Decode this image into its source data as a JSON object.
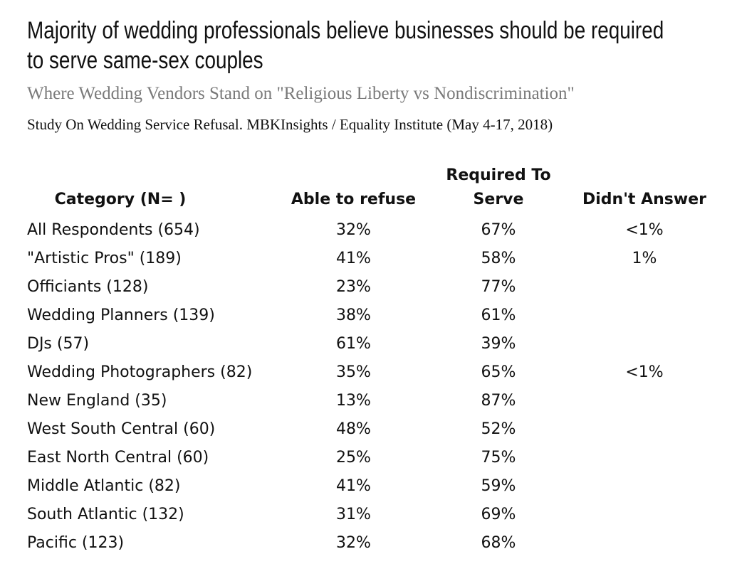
{
  "chart_data": {
    "type": "table",
    "title_lines": [
      "Majority of wedding professionals believe businesses should be required",
      "to serve same-sex couples"
    ],
    "subtitle": "Where Wedding Vendors Stand on \"Religious Liberty vs Nondiscrimination\"",
    "source": "Study On Wedding Service Refusal. MBKInsights / Equality Institute (May 4-17, 2018)",
    "headers": {
      "category": "Category (N= )",
      "refuse": "Able to refuse",
      "required_line1": "Required To",
      "required_line2": "Serve",
      "no_answer": "Didn't Answer"
    },
    "rows": [
      {
        "category": "All Respondents (654)",
        "refuse": "32%",
        "required": "67%",
        "no_answer": "<1%"
      },
      {
        "category": "\"Artistic Pros\" (189)",
        "refuse": "41%",
        "required": "58%",
        "no_answer": "1%"
      },
      {
        "category": "Officiants (128)",
        "refuse": "23%",
        "required": "77%",
        "no_answer": ""
      },
      {
        "category": "Wedding Planners (139)",
        "refuse": "38%",
        "required": "61%",
        "no_answer": ""
      },
      {
        "category": "DJs (57)",
        "refuse": "61%",
        "required": "39%",
        "no_answer": ""
      },
      {
        "category": "Wedding Photographers (82)",
        "refuse": "35%",
        "required": "65%",
        "no_answer": "<1%"
      },
      {
        "category": "New England (35)",
        "refuse": "13%",
        "required": "87%",
        "no_answer": ""
      },
      {
        "category": "West South Central (60)",
        "refuse": "48%",
        "required": "52%",
        "no_answer": ""
      },
      {
        "category": "East North Central (60)",
        "refuse": "25%",
        "required": "75%",
        "no_answer": ""
      },
      {
        "category": "Middle Atlantic (82)",
        "refuse": "41%",
        "required": "59%",
        "no_answer": ""
      },
      {
        "category": "South Atlantic (132)",
        "refuse": "31%",
        "required": "69%",
        "no_answer": ""
      },
      {
        "category": "Pacific (123)",
        "refuse": "32%",
        "required": "68%",
        "no_answer": ""
      }
    ]
  }
}
